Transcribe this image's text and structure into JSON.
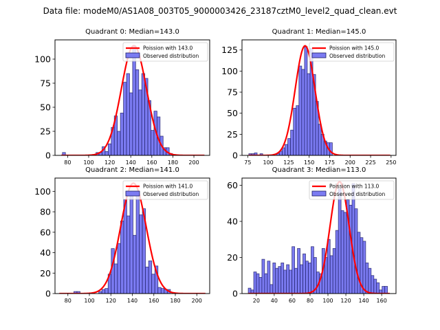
{
  "figure": {
    "suptitle": "Data file: modeM0/AS1A08_003T05_9000003426_23187cztM0_level2_quad_clean.evt"
  },
  "colors": {
    "bar_fill": "#7b7bf2",
    "bar_edge": "#1a1a60",
    "poisson_line": "#ff0000"
  },
  "chart_data": [
    {
      "type": "bar",
      "title": "Quadrant 0: Median=143.0",
      "median": 143.0,
      "xlim": [
        68,
        215
      ],
      "ylim": [
        0,
        120
      ],
      "xticks": [
        80,
        100,
        120,
        140,
        160,
        180,
        200
      ],
      "yticks": [
        0,
        25,
        50,
        75,
        100
      ],
      "bin_width": 2.9,
      "legend": {
        "position": "top-right",
        "entries": [
          "Poission with 143.0",
          "Observed distribution"
        ]
      },
      "histogram": {
        "x": [
          76.5,
          79.4,
          82.3,
          85.2,
          88.1,
          91.0,
          93.9,
          96.8,
          99.7,
          102.6,
          105.5,
          108.4,
          111.3,
          114.2,
          117.1,
          120.0,
          122.9,
          125.8,
          128.7,
          131.6,
          134.5,
          137.4,
          140.3,
          143.2,
          146.1,
          149.0,
          151.9,
          154.8,
          157.7,
          160.6,
          163.5,
          166.4,
          169.3,
          172.2,
          175.1,
          178.0
        ],
        "values": [
          3,
          0,
          0,
          0,
          0,
          0,
          0,
          0,
          0,
          0,
          0,
          3,
          3,
          9,
          4,
          12,
          29,
          41,
          25,
          44,
          76,
          85,
          65,
          114,
          89,
          68,
          85,
          80,
          57,
          26,
          46,
          40,
          20,
          8,
          8,
          2
        ]
      },
      "poisson_curve": {
        "mean": 143.0,
        "peak": 114,
        "x_range": [
          74,
          210
        ]
      }
    },
    {
      "type": "bar",
      "title": "Quadrant 1: Median=145.0",
      "median": 145.0,
      "xlim": [
        68,
        256
      ],
      "ylim": [
        0,
        137
      ],
      "xticks": [
        75,
        100,
        125,
        150,
        175,
        200,
        225,
        250
      ],
      "yticks": [
        0,
        25,
        50,
        75,
        100,
        125
      ],
      "bin_width": 3.4,
      "legend": {
        "position": "top-right",
        "entries": [
          "Poission with 145.0",
          "Observed distribution"
        ]
      },
      "histogram": {
        "x": [
          78.0,
          81.4,
          84.8,
          88.2,
          91.6,
          95.0,
          98.4,
          101.8,
          105.2,
          108.6,
          112.0,
          115.4,
          118.8,
          122.2,
          125.6,
          129.0,
          132.4,
          135.8,
          139.2,
          142.6,
          146.0,
          149.4,
          152.8,
          156.2,
          159.6,
          163.0,
          166.4,
          169.8,
          173.2,
          176.6
        ],
        "values": [
          2,
          2,
          3,
          0,
          2,
          0,
          0,
          0,
          0,
          0,
          2,
          5,
          9,
          13,
          20,
          30,
          56,
          59,
          106,
          102,
          129,
          97,
          127,
          96,
          64,
          37,
          25,
          17,
          15,
          15
        ]
      },
      "poisson_curve": {
        "mean": 145.0,
        "peak": 130,
        "x_range": [
          76,
          249
        ]
      }
    },
    {
      "type": "bar",
      "title": "Quadrant 2: Median=141.0",
      "median": 141.0,
      "xlim": [
        68,
        212
      ],
      "ylim": [
        0,
        113
      ],
      "xticks": [
        80,
        100,
        120,
        140,
        160,
        180,
        200
      ],
      "yticks": [
        0,
        20,
        40,
        60,
        80,
        100
      ],
      "bin_width": 2.9,
      "legend": {
        "position": "top-right",
        "entries": [
          "Poission with 141.0",
          "Observed distribution"
        ]
      },
      "histogram": {
        "x": [
          87.0,
          89.9,
          92.8,
          95.7,
          98.6,
          101.5,
          104.4,
          107.3,
          110.2,
          113.1,
          116.0,
          118.9,
          121.8,
          124.7,
          127.6,
          130.5,
          133.4,
          136.3,
          139.2,
          142.1,
          145.0,
          147.9,
          150.8,
          153.7,
          156.6,
          159.5,
          162.4,
          165.3,
          168.2,
          171.1,
          174.0
        ],
        "values": [
          2,
          2,
          0,
          0,
          0,
          0,
          0,
          0,
          2,
          4,
          5,
          19,
          44,
          29,
          49,
          71,
          92,
          76,
          97,
          57,
          100,
          77,
          83,
          26,
          32,
          19,
          27,
          6,
          5,
          4,
          4
        ]
      },
      "poisson_curve": {
        "mean": 141.0,
        "peak": 108,
        "x_range": [
          72,
          208
        ]
      }
    },
    {
      "type": "bar",
      "title": "Quadrant 3: Median=113.0",
      "median": 113.0,
      "xlim": [
        4,
        176
      ],
      "ylim": [
        0,
        64
      ],
      "xticks": [
        20,
        40,
        60,
        80,
        100,
        120,
        140,
        160
      ],
      "yticks": [
        0,
        20,
        40,
        60
      ],
      "bin_width": 3.05,
      "legend": {
        "position": "top-right",
        "entries": [
          "Poission with 113.0",
          "Observed distribution"
        ]
      },
      "histogram": {
        "x": [
          12.5,
          15.55,
          18.6,
          21.65,
          24.7,
          27.75,
          30.8,
          33.85,
          36.9,
          39.95,
          43.0,
          46.05,
          49.1,
          52.15,
          55.2,
          58.25,
          61.3,
          64.35,
          67.4,
          70.45,
          73.5,
          76.55,
          79.6,
          82.65,
          85.7,
          88.75,
          91.8,
          94.85,
          97.9,
          100.95,
          104.0,
          107.05,
          110.1,
          113.15,
          116.2,
          119.25,
          122.3,
          125.35,
          128.4,
          131.45,
          134.5,
          137.55,
          140.6,
          143.65,
          146.7,
          149.75,
          152.8,
          155.85,
          158.9,
          161.95,
          165.0,
          168.05
        ],
        "values": [
          3,
          2,
          12,
          11,
          9,
          19,
          11,
          18,
          5,
          17,
          14,
          15,
          17,
          13,
          16,
          13,
          26,
          14,
          25,
          16,
          22,
          18,
          17,
          26,
          20,
          12,
          11,
          25,
          20,
          30,
          21,
          25,
          35,
          58,
          46,
          45,
          52,
          49,
          61,
          47,
          34,
          31,
          29,
          17,
          14,
          10,
          8,
          6,
          2,
          4,
          4,
          0
        ]
      },
      "poisson_curve": {
        "mean": 113.0,
        "peak": 62,
        "x_range": [
          11,
          169
        ]
      }
    }
  ]
}
